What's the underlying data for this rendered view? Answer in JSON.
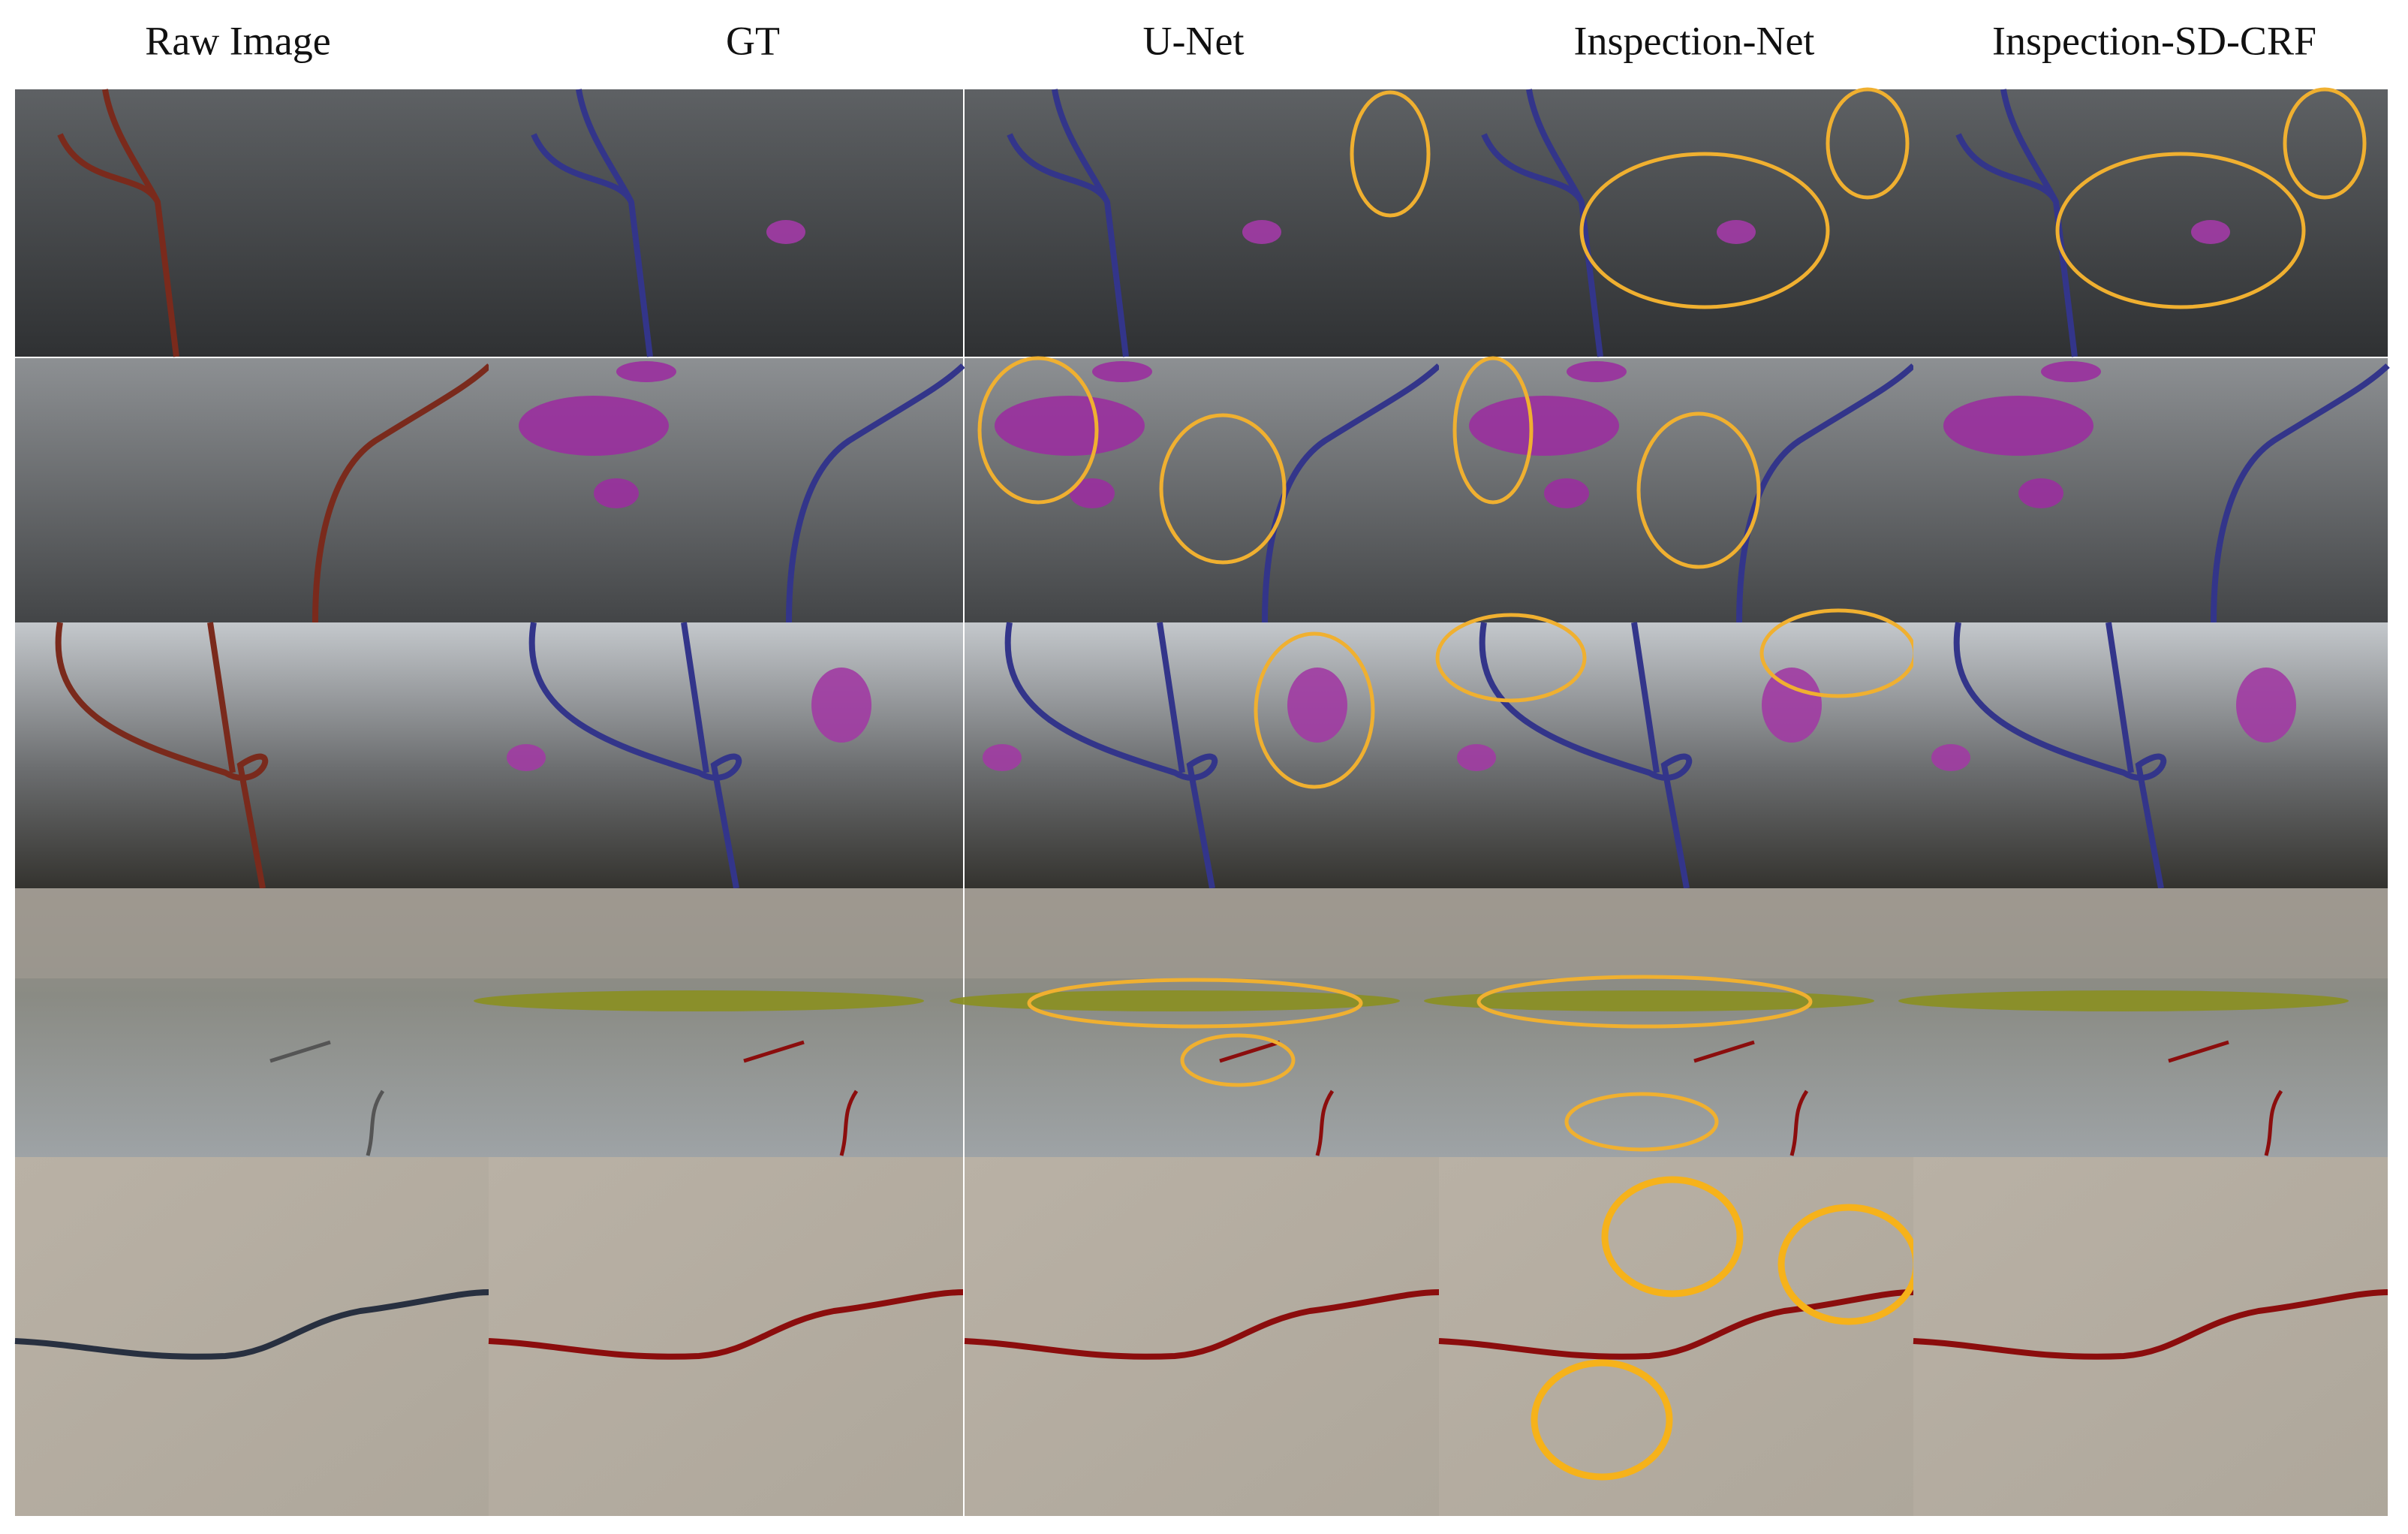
{
  "figure": {
    "column_headers": [
      "Raw Image",
      "GT",
      "U-Net",
      "Inspection-Net",
      "Inspection-SD-CRF"
    ]
  }
}
